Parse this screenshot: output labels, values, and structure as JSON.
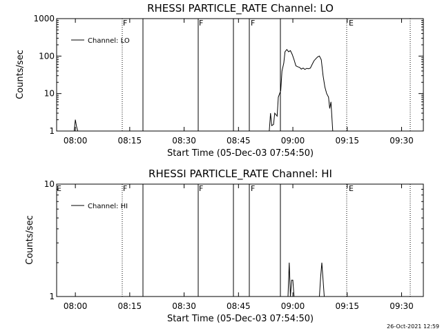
{
  "footer": {
    "timestamp": "26-Oct-2021 12:59"
  },
  "chart_data": [
    {
      "type": "line",
      "title": "RHESSI PARTICLE_RATE Channel: LO",
      "xlabel": "Start Time (05-Dec-03 07:54:50)",
      "ylabel": "Counts/sec",
      "yscale": "log",
      "ylim": [
        1,
        1000
      ],
      "xlim": [
        "07:54:50",
        "09:36:00"
      ],
      "x_tick_labels": [
        "08:00",
        "08:15",
        "08:30",
        "08:45",
        "09:00",
        "09:15",
        "09:30"
      ],
      "y_tick_labels": [
        "1",
        "10",
        "100",
        "1000"
      ],
      "legend": {
        "entries": [
          "Channel: LO"
        ],
        "position": "top-left"
      },
      "flag_labels": [
        "F",
        "F",
        "F",
        "E"
      ],
      "series": [
        {
          "name": "Channel: LO",
          "x": [
            "07:59:40",
            "08:00:00",
            "08:00:20",
            "08:00:40",
            "08:53:30",
            "08:53:50",
            "08:54:10",
            "08:54:40",
            "08:55:00",
            "08:55:40",
            "08:56:00",
            "08:56:40",
            "08:57:00",
            "08:57:30",
            "08:57:50",
            "08:58:20",
            "08:58:50",
            "08:59:20",
            "08:59:50",
            "09:00:20",
            "09:00:50",
            "09:01:20",
            "09:01:50",
            "09:02:20",
            "09:02:50",
            "09:03:20",
            "09:03:50",
            "09:04:20",
            "09:04:50",
            "09:05:20",
            "09:05:50",
            "09:06:20",
            "09:06:50",
            "09:07:20",
            "09:07:50",
            "09:08:20",
            "09:08:50",
            "09:09:20",
            "09:09:50",
            "09:10:10",
            "09:10:30",
            "09:11:00"
          ],
          "y": [
            1,
            2,
            1.3,
            1,
            1,
            3,
            1.4,
            1.5,
            3,
            2.5,
            8,
            12,
            40,
            65,
            130,
            150,
            130,
            140,
            110,
            80,
            55,
            52,
            50,
            45,
            48,
            44,
            47,
            46,
            48,
            60,
            75,
            85,
            95,
            100,
            80,
            30,
            15,
            10,
            8,
            4,
            6,
            1
          ]
        }
      ]
    },
    {
      "type": "line",
      "title": "RHESSI PARTICLE_RATE Channel: HI",
      "xlabel": "Start Time (05-Dec-03 07:54:50)",
      "ylabel": "Counts/sec",
      "yscale": "log",
      "ylim": [
        1,
        10
      ],
      "xlim": [
        "07:54:50",
        "09:36:00"
      ],
      "x_tick_labels": [
        "08:00",
        "08:15",
        "08:30",
        "08:45",
        "09:00",
        "09:15",
        "09:30"
      ],
      "y_tick_labels": [
        "1",
        "10"
      ],
      "legend": {
        "entries": [
          "Channel: HI"
        ],
        "position": "top-left"
      },
      "flag_labels": [
        "E",
        "F",
        "F",
        "F",
        "E"
      ],
      "series": [
        {
          "name": "Channel: HI",
          "x": [
            "08:58:40",
            "08:59:00",
            "08:59:20",
            "08:59:40",
            "09:00:00",
            "09:00:20",
            "09:07:20",
            "09:07:40",
            "09:08:00",
            "09:08:20",
            "09:08:40"
          ],
          "y": [
            1,
            2,
            1,
            1.4,
            1.4,
            1,
            1,
            1.5,
            2,
            1.4,
            1
          ]
        }
      ]
    }
  ]
}
